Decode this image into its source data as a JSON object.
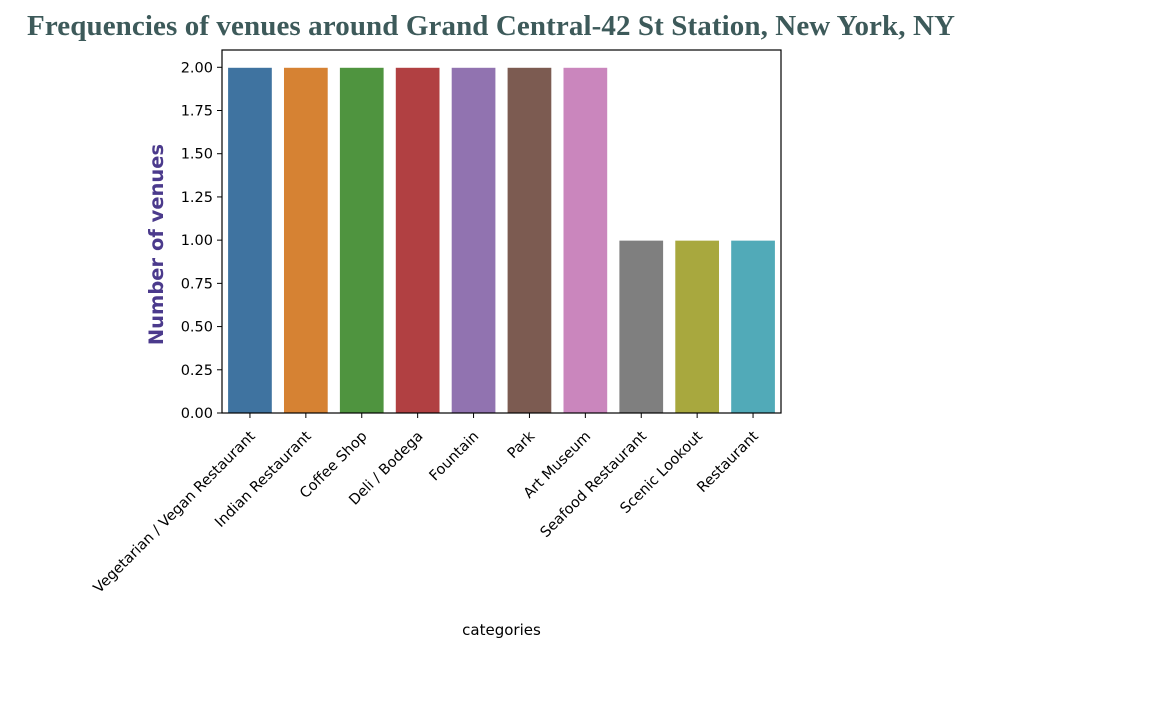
{
  "title": "Frequencies of venues around Grand Central-42 St Station, New York, NY",
  "colors": {
    "title": "#3d5a5a",
    "ylabel": "#4b3a8c",
    "axis": "#000000"
  },
  "chart_data": {
    "type": "bar",
    "title": "Frequencies of venues around Grand Central-42 St Station, New York, NY",
    "xlabel": "categories",
    "ylabel": "Number of venues",
    "ylim": [
      0,
      2.1
    ],
    "yticks": [
      "0.00",
      "0.25",
      "0.50",
      "0.75",
      "1.00",
      "1.25",
      "1.50",
      "1.75",
      "2.00"
    ],
    "grid": false,
    "legend": "none",
    "categories": [
      "Vegetarian / Vegan Restaurant",
      "Indian Restaurant",
      "Coffee Shop",
      "Deli / Bodega",
      "Fountain",
      "Park",
      "Art Museum",
      "Seafood Restaurant",
      "Scenic Lookout",
      "Restaurant"
    ],
    "values": [
      2,
      2,
      2,
      2,
      2,
      2,
      2,
      1,
      1,
      1
    ],
    "bar_colors": [
      "#3f73a0",
      "#d68233",
      "#4f943f",
      "#b14042",
      "#9173b0",
      "#7c5b51",
      "#ca86bd",
      "#7f7f7f",
      "#a8a83e",
      "#51aab8"
    ]
  }
}
